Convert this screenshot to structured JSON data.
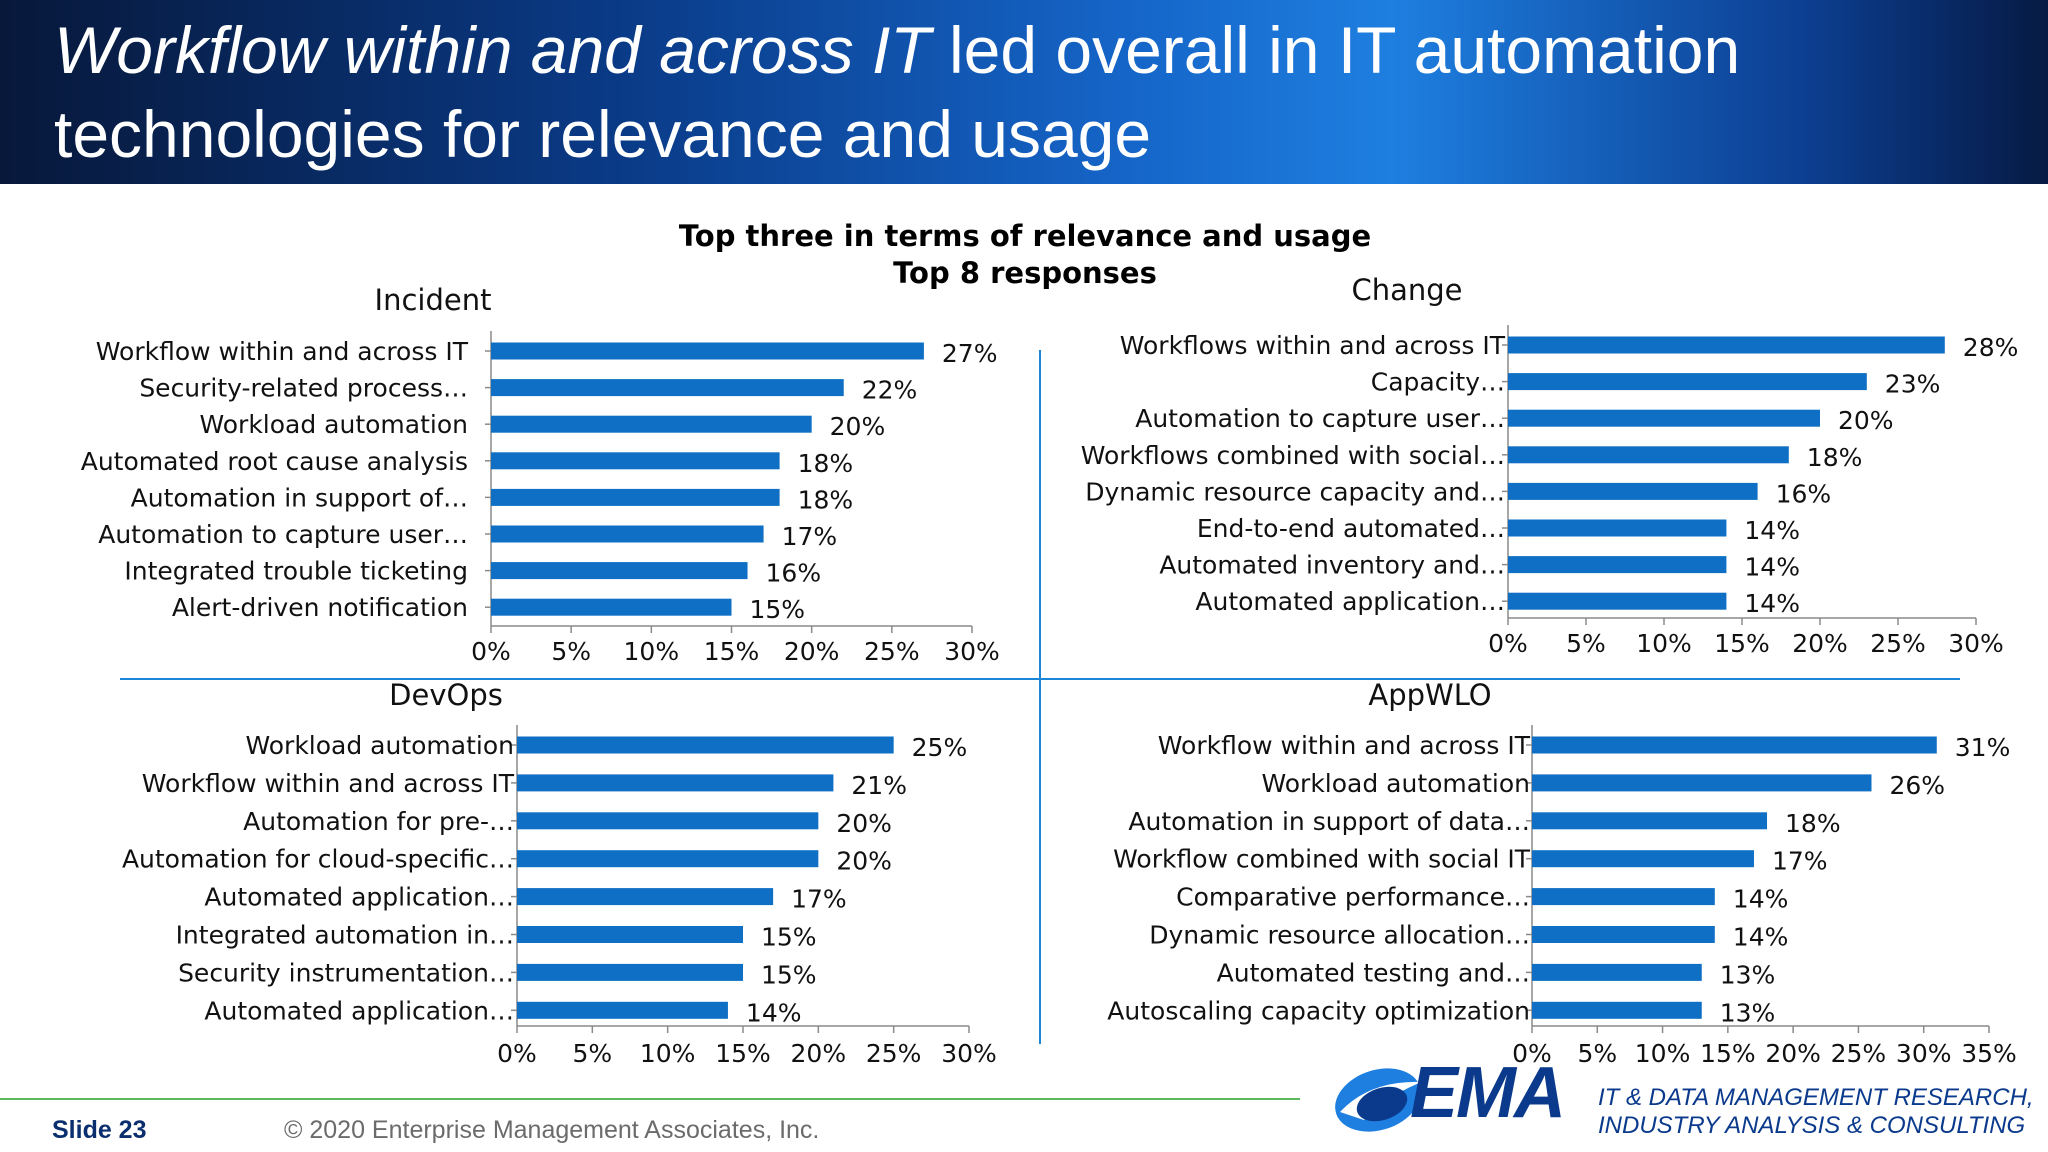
{
  "header": {
    "title_italic": "Workflow within and across IT",
    "title_rest": " led overall in IT automation technologies for relevance and usage"
  },
  "chart_heading": {
    "line1": "Top three in terms of relevance and usage",
    "line2": "Top 8 responses"
  },
  "chart_data": [
    {
      "type": "bar",
      "orientation": "horizontal",
      "title": "Incident",
      "categories": [
        "Workflow within and across IT",
        "Security-related process…",
        "Workload automation",
        "Automated root cause analysis",
        "Automation in support of…",
        "Automation to capture user…",
        "Integrated trouble ticketing",
        "Alert-driven notification"
      ],
      "values": [
        27,
        22,
        20,
        18,
        18,
        17,
        16,
        15
      ],
      "value_labels": [
        "27%",
        "22%",
        "20%",
        "18%",
        "18%",
        "17%",
        "16%",
        "15%"
      ],
      "ticks": [
        "0%",
        "5%",
        "10%",
        "15%",
        "20%",
        "25%",
        "30%"
      ],
      "xlim": [
        0,
        30
      ],
      "grid": false,
      "bar_color": "#0e6fc4"
    },
    {
      "type": "bar",
      "orientation": "horizontal",
      "title": "Change",
      "categories": [
        "Workflows within and across IT",
        "Capacity…",
        "Automation to capture user…",
        "Workflows combined with social…",
        "Dynamic resource capacity and…",
        "End-to-end automated…",
        "Automated inventory and…",
        "Automated application…"
      ],
      "values": [
        28,
        23,
        20,
        18,
        16,
        14,
        14,
        14
      ],
      "value_labels": [
        "28%",
        "23%",
        "20%",
        "18%",
        "16%",
        "14%",
        "14%",
        "14%"
      ],
      "ticks": [
        "0%",
        "5%",
        "10%",
        "15%",
        "20%",
        "25%",
        "30%"
      ],
      "xlim": [
        0,
        30
      ],
      "grid": false,
      "bar_color": "#0e6fc4"
    },
    {
      "type": "bar",
      "orientation": "horizontal",
      "title": "DevOps",
      "categories": [
        "Workload automation",
        "Workflow within and across IT",
        "Automation for pre-…",
        "Automation for cloud-specific…",
        "Automated application…",
        "Integrated automation in…",
        "Security instrumentation…",
        "Automated application…"
      ],
      "values": [
        25,
        21,
        20,
        20,
        17,
        15,
        15,
        14
      ],
      "value_labels": [
        "25%",
        "21%",
        "20%",
        "20%",
        "17%",
        "15%",
        "15%",
        "14%"
      ],
      "ticks": [
        "0%",
        "5%",
        "10%",
        "15%",
        "20%",
        "25%",
        "30%"
      ],
      "xlim": [
        0,
        30
      ],
      "grid": false,
      "bar_color": "#0e6fc4"
    },
    {
      "type": "bar",
      "orientation": "horizontal",
      "title": "AppWLO",
      "categories": [
        "Workflow within and across IT",
        "Workload automation",
        "Automation in support of data…",
        "Workflow combined with social IT",
        "Comparative performance…",
        "Dynamic resource allocation…",
        "Automated testing and…",
        "Autoscaling capacity optimization"
      ],
      "values": [
        31,
        26,
        18,
        17,
        14,
        14,
        13,
        13
      ],
      "value_labels": [
        "31%",
        "26%",
        "18%",
        "17%",
        "14%",
        "14%",
        "13%",
        "13%"
      ],
      "ticks": [
        "0%",
        "5%",
        "10%",
        "15%",
        "20%",
        "25%",
        "30%",
        "35%"
      ],
      "xlim": [
        0,
        35
      ],
      "grid": false,
      "bar_color": "#0e6fc4"
    }
  ],
  "footer": {
    "slide_label": "Slide 23",
    "copyright": "© 2020 Enterprise Management Associates, Inc.",
    "logo_text": "EMA",
    "tagline_line1": "IT & DATA MANAGEMENT RESEARCH,",
    "tagline_line2": "INDUSTRY ANALYSIS & CONSULTING"
  },
  "colors": {
    "bar": "#0e6fc4",
    "divider": "#1c86d6",
    "brand": "#0b3a8c",
    "footer_line": "#5cb85c"
  }
}
